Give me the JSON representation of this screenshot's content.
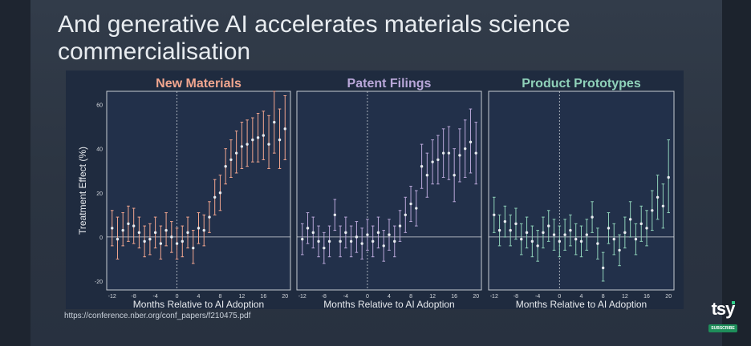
{
  "slide": {
    "title": "And generative AI accelerates materials science commercialisation",
    "source": "https://conference.nber.org/conf_papers/f210475.pdf"
  },
  "logo": {
    "text": "tsy",
    "badge": "SUBSCRIBE"
  },
  "colors": {
    "panel_background": "#1f2b3f",
    "new_materials": "#f2a68f",
    "patent_filings": "#b9a7d9",
    "product_prototypes": "#8fd1b9",
    "points": "#e8ebef"
  },
  "chart_data": [
    {
      "type": "scatter",
      "title": "New Materials",
      "xlabel": "Months Relative to AI Adoption",
      "ylabel": "Treatment Effect (%)",
      "xticks": [
        "-12",
        "-8",
        "-4",
        "0",
        "4",
        "8",
        "12",
        "16",
        "20"
      ],
      "yticks": [
        "-20",
        "0",
        "20",
        "40",
        "60"
      ],
      "xlim": [
        -13,
        21
      ],
      "ylim": [
        -24,
        66
      ],
      "reference_x": 0,
      "reference_y": 0,
      "x": [
        -12,
        -11,
        -10,
        -9,
        -8,
        -7,
        -6,
        -5,
        -4,
        -3,
        -2,
        -1,
        0,
        1,
        2,
        3,
        4,
        5,
        6,
        7,
        8,
        9,
        10,
        11,
        12,
        13,
        14,
        15,
        16,
        17,
        18,
        19,
        20
      ],
      "estimate": [
        4,
        -1,
        3,
        6,
        5,
        2,
        -2,
        -1,
        2,
        -3,
        3,
        0,
        -3,
        -2,
        2,
        -5,
        4,
        3,
        9,
        18,
        20,
        32,
        35,
        38,
        41,
        42,
        44,
        45,
        46,
        42,
        52,
        44,
        49
      ],
      "ci_low": [
        -4,
        -10,
        -4,
        -2,
        -3,
        -5,
        -9,
        -8,
        -5,
        -10,
        -4,
        -7,
        -10,
        -9,
        -5,
        -12,
        -3,
        -4,
        2,
        10,
        12,
        24,
        27,
        29,
        31,
        32,
        34,
        34,
        35,
        31,
        38,
        31,
        35
      ],
      "ci_high": [
        12,
        9,
        11,
        14,
        13,
        9,
        5,
        6,
        9,
        5,
        11,
        7,
        4,
        5,
        9,
        3,
        11,
        10,
        16,
        26,
        28,
        40,
        44,
        48,
        52,
        53,
        54,
        56,
        57,
        55,
        66,
        58,
        64
      ]
    },
    {
      "type": "scatter",
      "title": "Patent Filings",
      "xlabel": "Months Relative to AI Adoption",
      "ylabel": "",
      "xticks": [
        "-12",
        "-8",
        "-4",
        "0",
        "4",
        "8",
        "12",
        "16",
        "20"
      ],
      "yticks": [
        "-20",
        "0",
        "20",
        "40",
        "60"
      ],
      "xlim": [
        -13,
        21
      ],
      "ylim": [
        -24,
        66
      ],
      "reference_x": 0,
      "reference_y": 0,
      "x": [
        -12,
        -11,
        -10,
        -9,
        -8,
        -7,
        -6,
        -5,
        -4,
        -3,
        -2,
        -1,
        0,
        1,
        2,
        3,
        4,
        5,
        6,
        7,
        8,
        9,
        10,
        11,
        12,
        13,
        14,
        15,
        16,
        17,
        18,
        19,
        20
      ],
      "estimate": [
        -1,
        4,
        2,
        -2,
        -5,
        -2,
        10,
        -2,
        2,
        -2,
        0,
        -3,
        1,
        -2,
        2,
        -4,
        1,
        -2,
        5,
        10,
        15,
        13,
        32,
        28,
        34,
        35,
        38,
        38,
        28,
        37,
        40,
        43,
        38
      ],
      "ci_low": [
        -8,
        -3,
        -5,
        -9,
        -12,
        -9,
        3,
        -9,
        -5,
        -9,
        -7,
        -10,
        -6,
        -9,
        -5,
        -11,
        -6,
        -9,
        -2,
        2,
        7,
        5,
        22,
        18,
        24,
        24,
        27,
        26,
        16,
        25,
        27,
        29,
        24
      ],
      "ci_high": [
        6,
        11,
        9,
        5,
        2,
        5,
        17,
        5,
        9,
        5,
        7,
        4,
        8,
        5,
        9,
        3,
        8,
        5,
        12,
        18,
        23,
        21,
        42,
        38,
        44,
        46,
        49,
        50,
        40,
        49,
        53,
        58,
        52
      ]
    },
    {
      "type": "scatter",
      "title": "Product Prototypes",
      "xlabel": "Months Relative to AI Adoption",
      "ylabel": "",
      "xticks": [
        "-12",
        "-8",
        "-4",
        "0",
        "4",
        "8",
        "12",
        "16",
        "20"
      ],
      "yticks": [
        "-20",
        "0",
        "20",
        "40",
        "60"
      ],
      "xlim": [
        -13,
        21
      ],
      "ylim": [
        -24,
        66
      ],
      "reference_x": 0,
      "reference_y": 0,
      "x": [
        -12,
        -11,
        -10,
        -9,
        -8,
        -7,
        -6,
        -5,
        -4,
        -3,
        -2,
        -1,
        0,
        1,
        2,
        3,
        4,
        5,
        6,
        7,
        8,
        9,
        10,
        11,
        12,
        13,
        14,
        15,
        16,
        17,
        18,
        19,
        20
      ],
      "estimate": [
        10,
        3,
        7,
        3,
        6,
        -1,
        2,
        -2,
        -4,
        2,
        5,
        1,
        -2,
        1,
        3,
        -1,
        -2,
        1,
        9,
        -3,
        -14,
        4,
        -1,
        -6,
        2,
        8,
        -1,
        6,
        4,
        12,
        18,
        14,
        27
      ],
      "ci_low": [
        2,
        -4,
        0,
        -4,
        -1,
        -8,
        -5,
        -9,
        -11,
        -5,
        -2,
        -6,
        -9,
        -6,
        -4,
        -8,
        -9,
        -6,
        2,
        -10,
        -20,
        -3,
        -8,
        -13,
        -5,
        0,
        -8,
        -2,
        -4,
        3,
        8,
        4,
        11
      ],
      "ci_high": [
        18,
        10,
        14,
        10,
        13,
        6,
        9,
        5,
        3,
        9,
        12,
        8,
        5,
        8,
        10,
        6,
        5,
        8,
        16,
        4,
        -7,
        11,
        6,
        1,
        9,
        16,
        6,
        14,
        12,
        21,
        28,
        24,
        44
      ]
    }
  ]
}
